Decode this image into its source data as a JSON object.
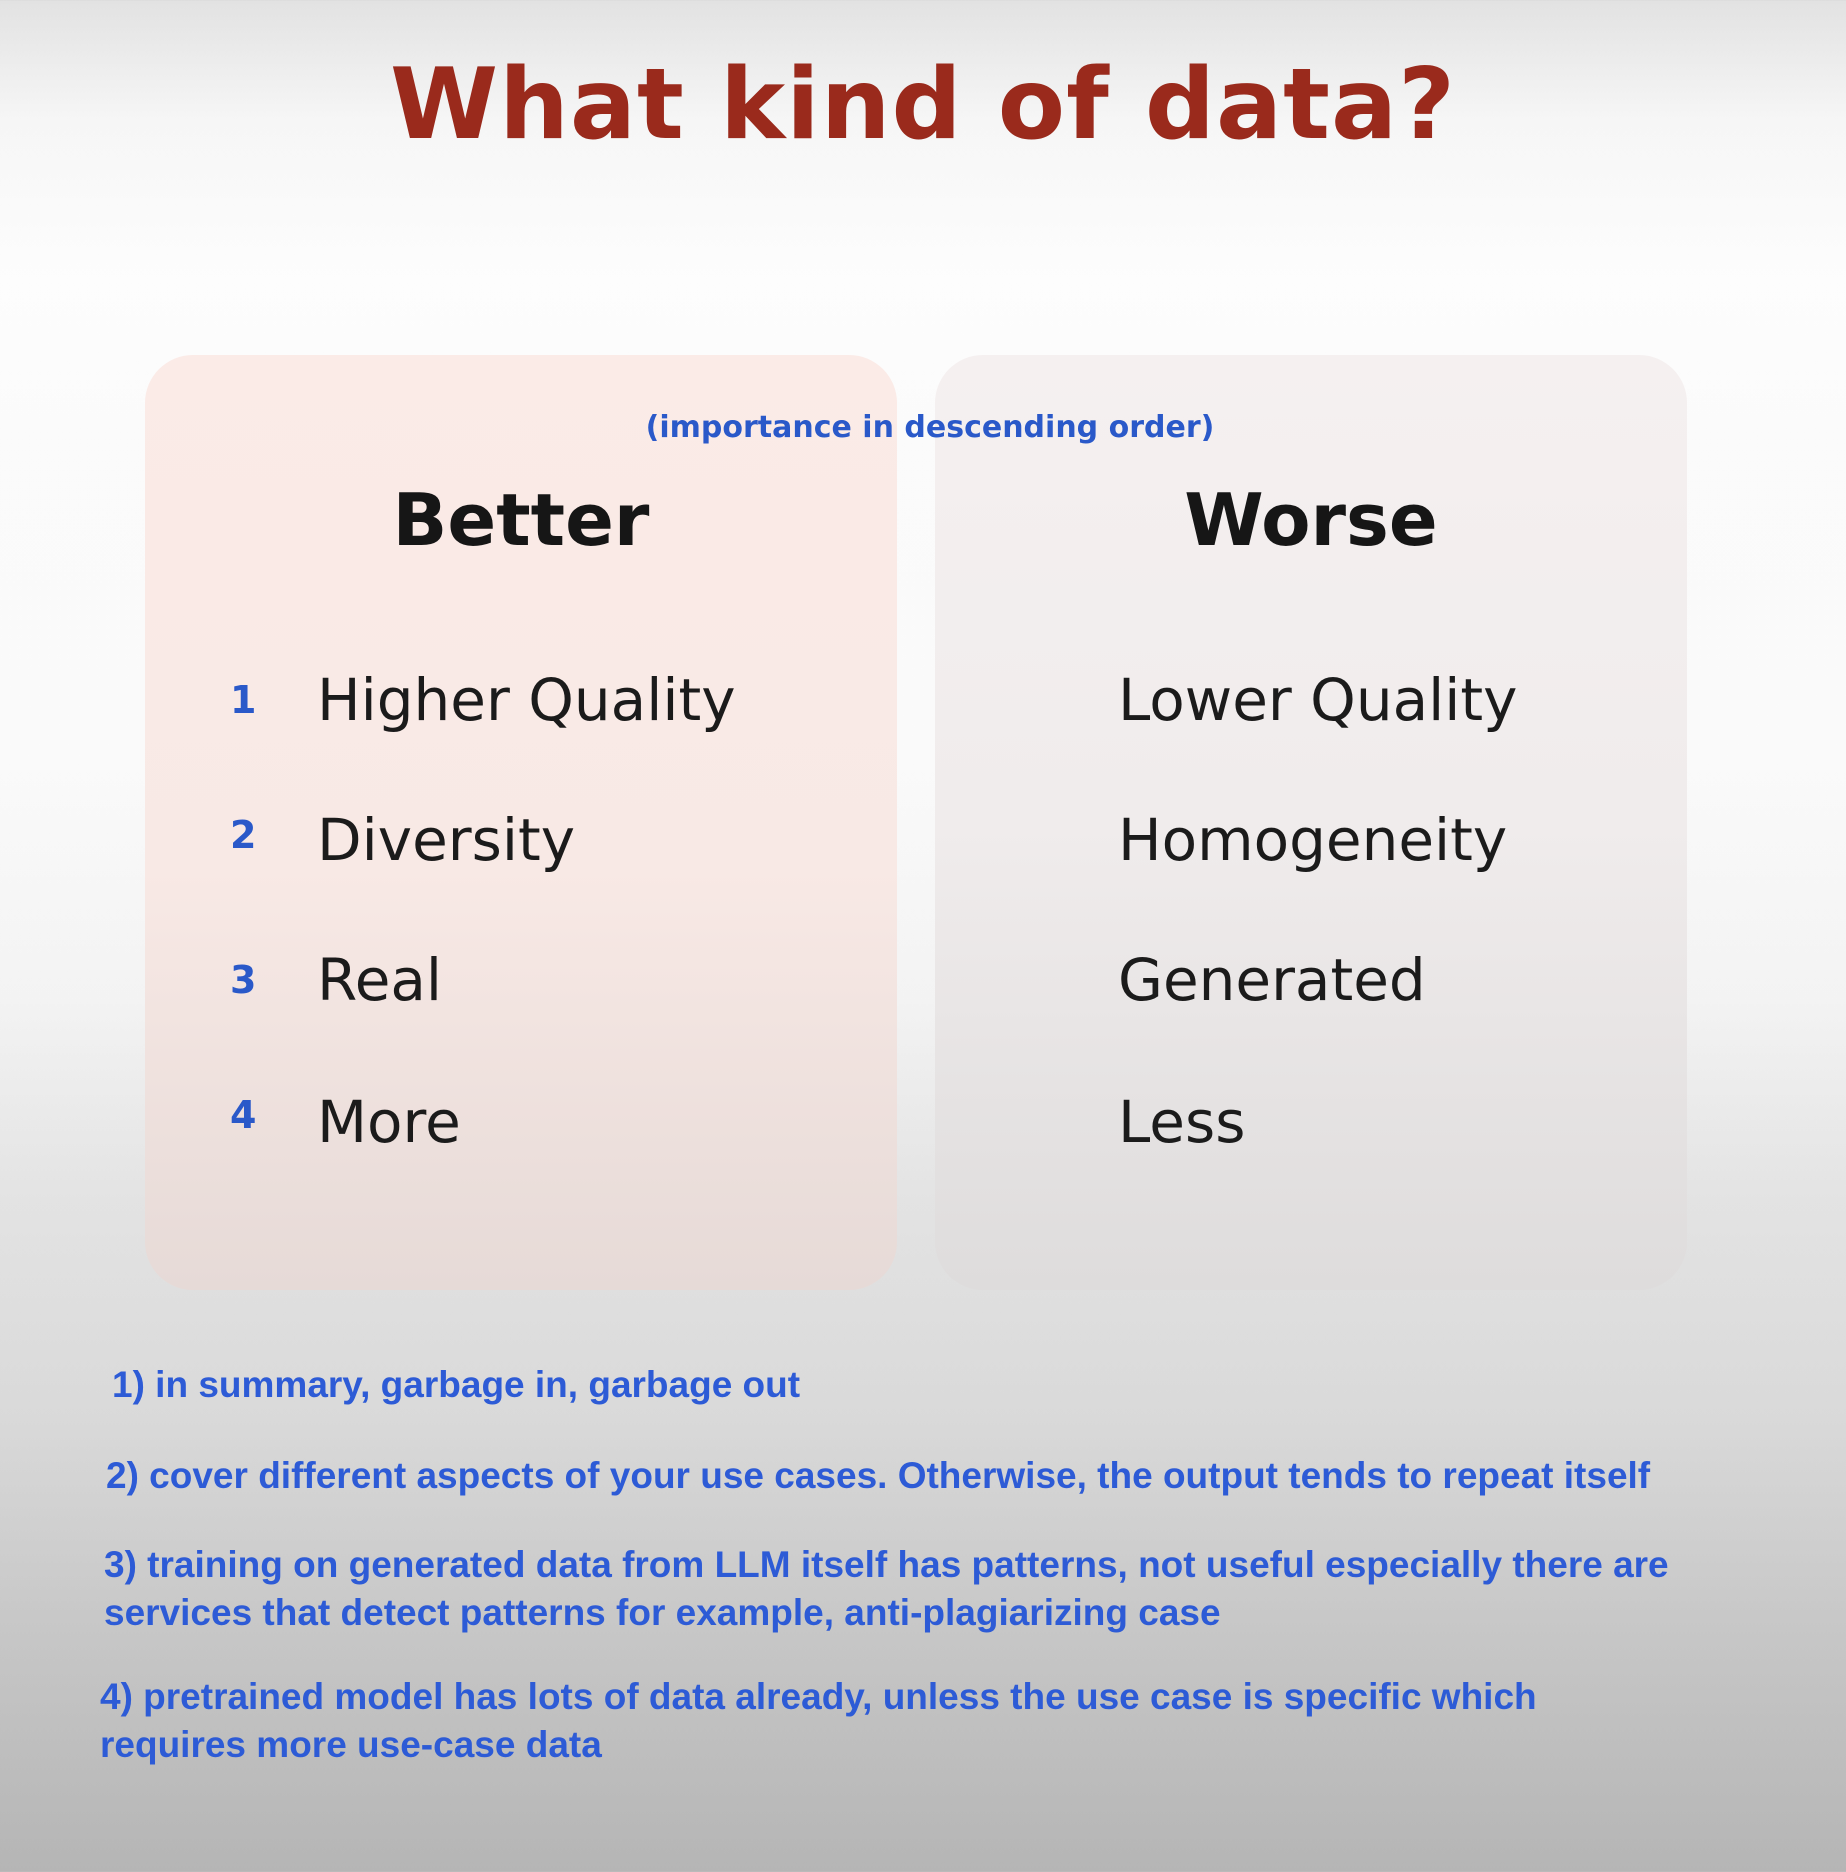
{
  "title": "What kind of data?",
  "subtitle_note": "(importance in descending order)",
  "better": {
    "heading": "Better",
    "items": [
      {
        "number": "1",
        "label": "Higher Quality"
      },
      {
        "number": "2",
        "label": "Diversity"
      },
      {
        "number": "3",
        "label": "Real"
      },
      {
        "number": "4",
        "label": "More"
      }
    ]
  },
  "worse": {
    "heading": "Worse",
    "items": [
      {
        "label": "Lower Quality"
      },
      {
        "label": "Homogeneity"
      },
      {
        "label": "Generated"
      },
      {
        "label": "Less"
      }
    ]
  },
  "notes": [
    {
      "lines": [
        "1) in summary, garbage in, garbage out"
      ]
    },
    {
      "lines": [
        "2) cover different aspects of your use cases. Otherwise, the output tends to repeat itself"
      ]
    },
    {
      "lines": [
        "3) training on generated data from LLM itself has patterns, not useful especially there are",
        "services that detect patterns for example, anti-plagiarizing case"
      ]
    },
    {
      "lines": [
        "4) pretrained model has lots of data already, unless the use case is specific which",
        "requires more use-case data"
      ]
    }
  ],
  "colors": {
    "title": "#9a2a1c",
    "annotation": "#2d5bd6",
    "better_card": "#f8e9e5",
    "worse_card": "#f0ecec"
  }
}
